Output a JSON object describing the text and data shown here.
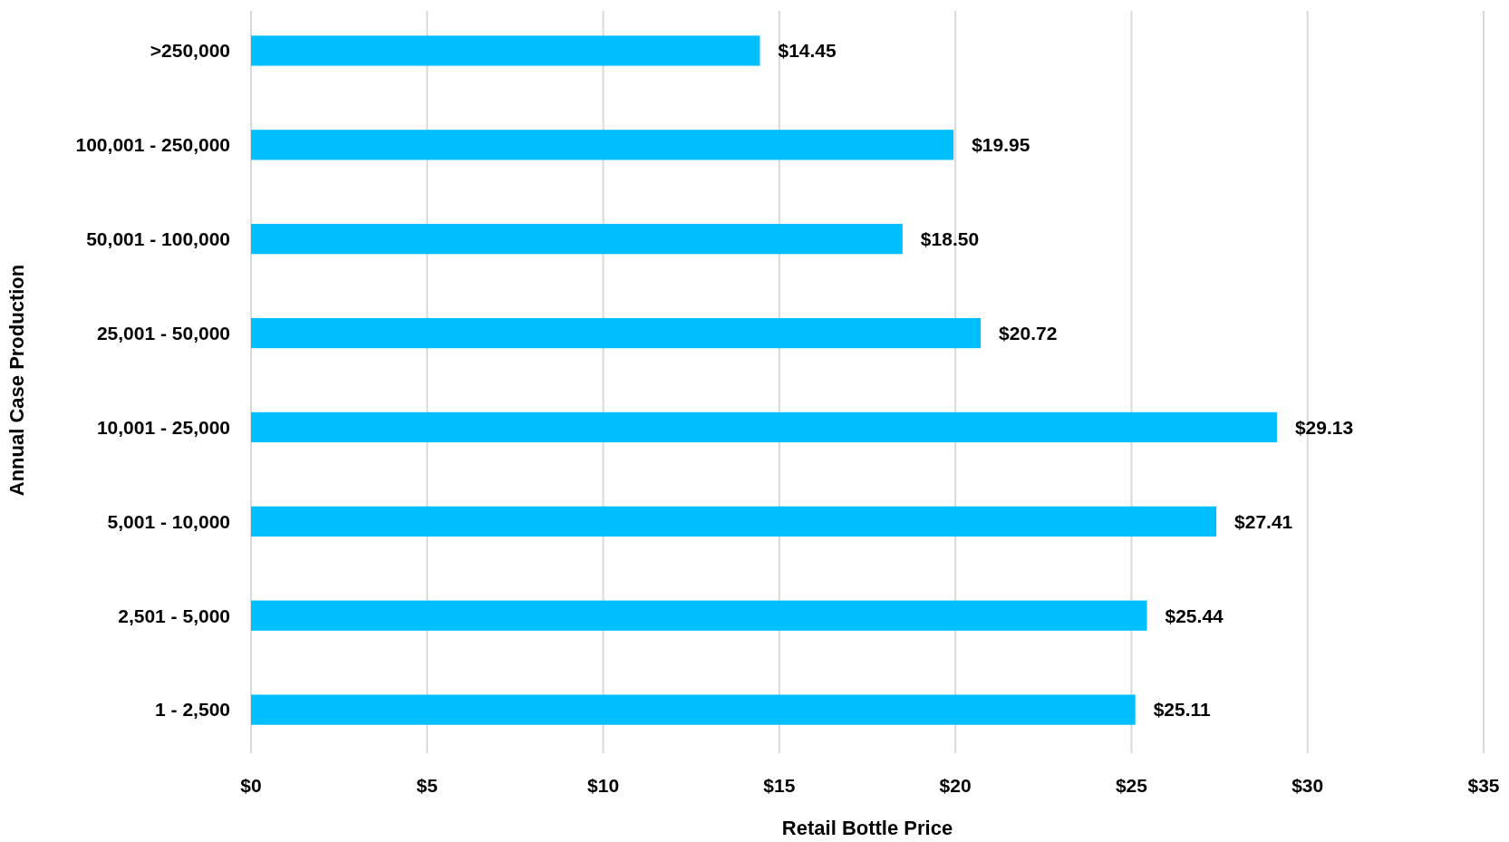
{
  "chart_data": {
    "type": "bar",
    "orientation": "horizontal",
    "xlabel": "Retail Bottle Price",
    "ylabel": "Annual Case Production",
    "categories": [
      ">250,000",
      "100,001 - 250,000",
      "50,001 - 100,000",
      "25,001 - 50,000",
      "10,001 - 25,000",
      "5,001 - 10,000",
      "2,501 - 5,000",
      "1 - 2,500"
    ],
    "values": [
      14.45,
      19.95,
      18.5,
      20.72,
      29.13,
      27.41,
      25.44,
      25.11
    ],
    "value_labels": [
      "$14.45",
      "$19.95",
      "$18.50",
      "$20.72",
      "$29.13",
      "$27.41",
      "$25.44",
      "$25.11"
    ],
    "color": "#00bfff",
    "xlim": [
      0,
      35
    ],
    "xticks": [
      {
        "value": 0,
        "label": "$0"
      },
      {
        "value": 5,
        "label": "$5"
      },
      {
        "value": 10,
        "label": "$10"
      },
      {
        "value": 15,
        "label": "$15"
      },
      {
        "value": 20,
        "label": "$20"
      },
      {
        "value": 25,
        "label": "$25"
      },
      {
        "value": 30,
        "label": "$30"
      },
      {
        "value": 35,
        "label": "$35"
      }
    ],
    "grid": "x"
  }
}
